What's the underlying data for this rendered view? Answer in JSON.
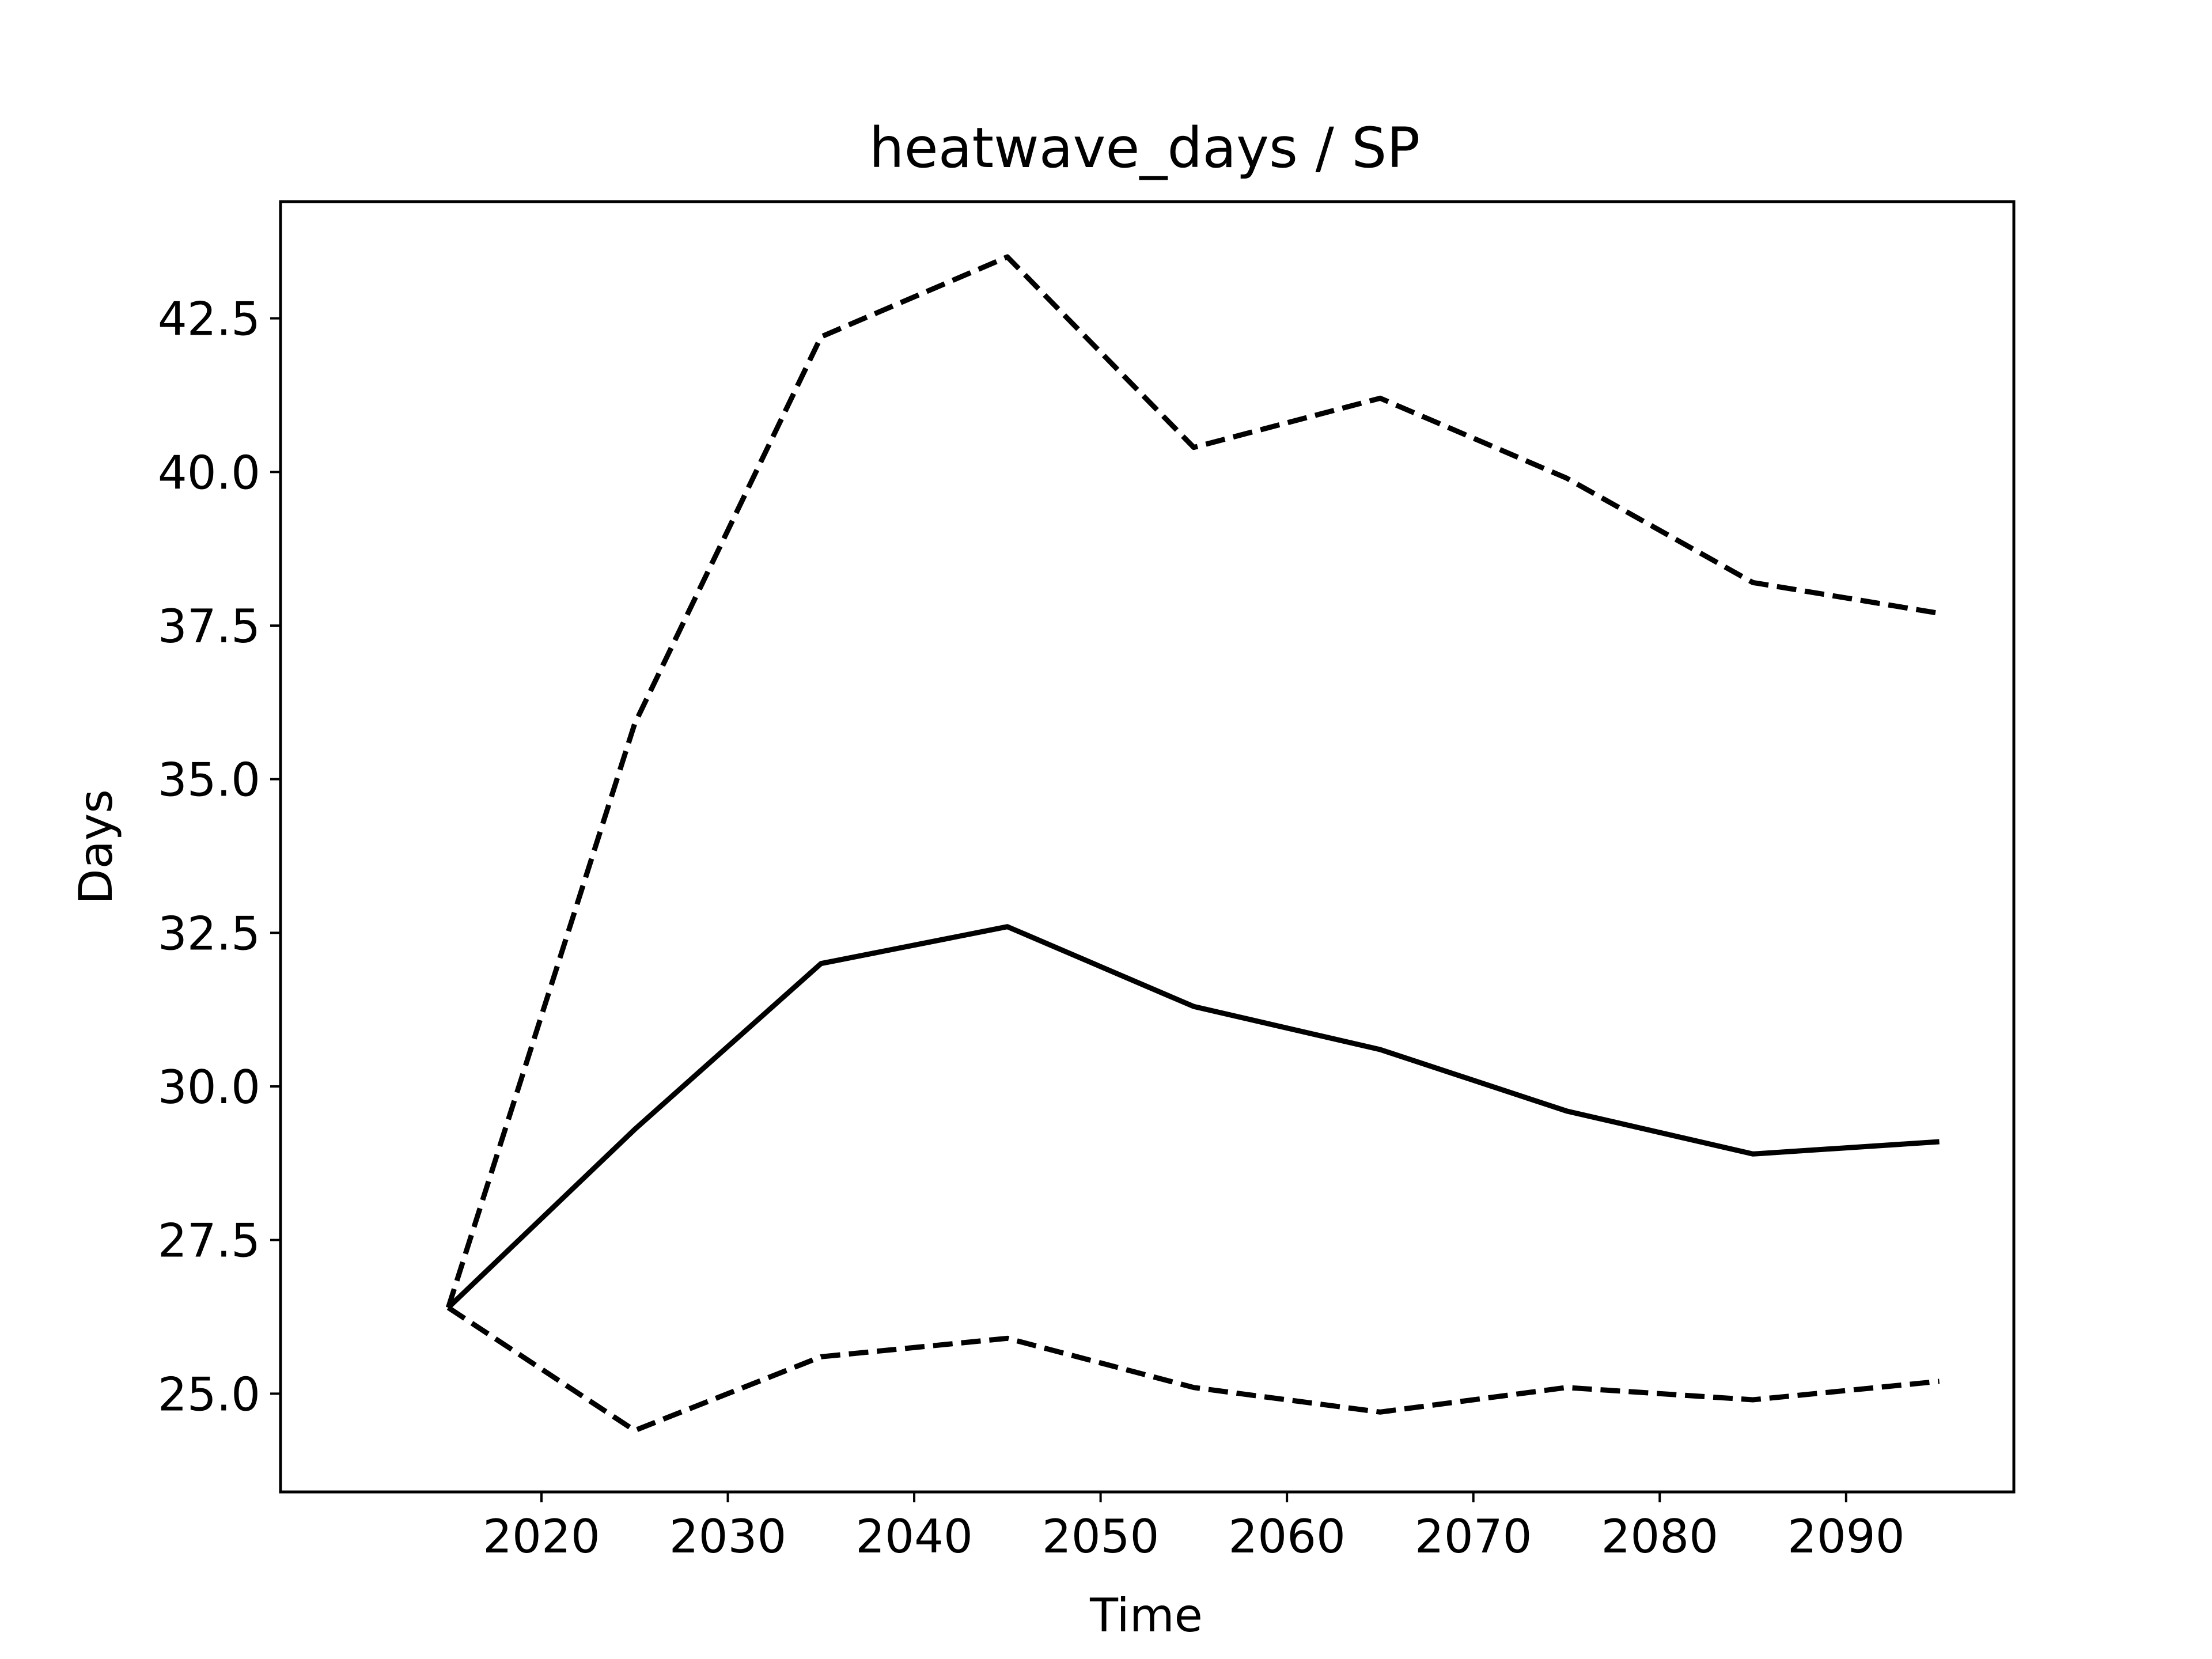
{
  "chart_data": {
    "type": "line",
    "title": "heatwave_days / SP",
    "xlabel": "Time",
    "ylabel": "Days",
    "x": [
      2015,
      2025,
      2035,
      2045,
      2055,
      2065,
      2075,
      2085,
      2095
    ],
    "xlim": [
      2006,
      2099
    ],
    "ylim": [
      23.4,
      44.4
    ],
    "xticks": [
      2020,
      2030,
      2040,
      2050,
      2060,
      2070,
      2080,
      2090
    ],
    "xtick_labels": [
      "2020",
      "2030",
      "2040",
      "2050",
      "2060",
      "2070",
      "2080",
      "2090"
    ],
    "yticks": [
      25.0,
      27.5,
      30.0,
      32.5,
      35.0,
      37.5,
      40.0,
      42.5
    ],
    "ytick_labels": [
      "25.0",
      "27.5",
      "30.0",
      "32.5",
      "35.0",
      "37.5",
      "40.0",
      "42.5"
    ],
    "grid": false,
    "legend": false,
    "series": [
      {
        "style": "dashed",
        "color": "#000000",
        "values": [
          26.4,
          35.9,
          42.2,
          43.5,
          40.4,
          41.2,
          39.9,
          38.2,
          37.7
        ]
      },
      {
        "style": "solid",
        "color": "#000000",
        "values": [
          26.4,
          29.3,
          32.0,
          32.6,
          31.3,
          30.6,
          29.6,
          28.9,
          29.1
        ]
      },
      {
        "style": "dashed",
        "color": "#000000",
        "values": [
          26.4,
          24.4,
          25.6,
          25.9,
          25.1,
          24.7,
          25.1,
          24.9,
          25.2
        ]
      }
    ]
  }
}
